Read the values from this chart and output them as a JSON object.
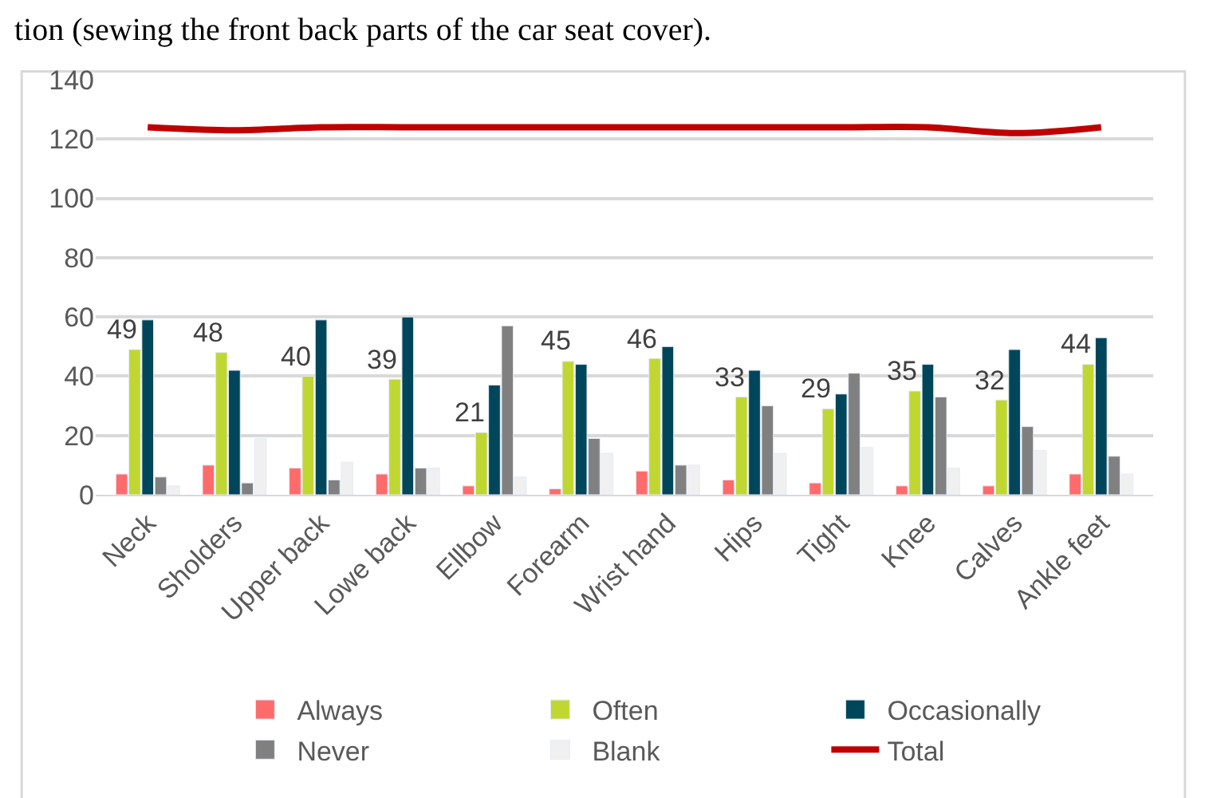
{
  "chart_data": {
    "type": "bar",
    "categories": [
      "Neck",
      "Sholders",
      "Upper back",
      "Lowe back",
      "Ellbow",
      "Forearm",
      "Wrist hand",
      "Hips",
      "Tight",
      "Knee",
      "Calves",
      "Ankle feet"
    ],
    "series": [
      {
        "name": "Always",
        "color": "#ff6b6b",
        "values": [
          7,
          10,
          9,
          7,
          3,
          2,
          8,
          5,
          4,
          3,
          3,
          7
        ]
      },
      {
        "name": "Often",
        "color": "#c0d732",
        "values": [
          49,
          48,
          40,
          39,
          21,
          45,
          46,
          33,
          29,
          35,
          32,
          44
        ],
        "value_labels": [
          "49",
          "48",
          "40",
          "39",
          "21",
          "45",
          "46",
          "33",
          "29",
          "35",
          "32",
          "44"
        ]
      },
      {
        "name": "Occasionally",
        "color": "#00465a",
        "values": [
          59,
          42,
          59,
          60,
          37,
          44,
          50,
          42,
          34,
          44,
          49,
          53
        ]
      },
      {
        "name": "Never",
        "color": "#808080",
        "values": [
          6,
          4,
          5,
          9,
          57,
          19,
          10,
          30,
          41,
          33,
          23,
          13
        ]
      },
      {
        "name": "Blank",
        "color": "#f0f0f0",
        "values": [
          3,
          19,
          11,
          9,
          6,
          14,
          10,
          14,
          16,
          9,
          15,
          7
        ]
      },
      {
        "name": "Total",
        "type": "line",
        "color": "#c00000",
        "values": [
          124,
          123,
          124,
          124,
          124,
          124,
          124,
          124,
          124,
          124,
          122,
          124
        ]
      }
    ],
    "ylim": [
      0,
      140
    ],
    "yticks": [
      0,
      20,
      40,
      60,
      80,
      100,
      120,
      140
    ],
    "grid": "y",
    "legend": "bottom",
    "marker": "none",
    "line_style": "solid",
    "annotations": [
      "tion (sewing the front back parts of the car seat cover)."
    ]
  }
}
